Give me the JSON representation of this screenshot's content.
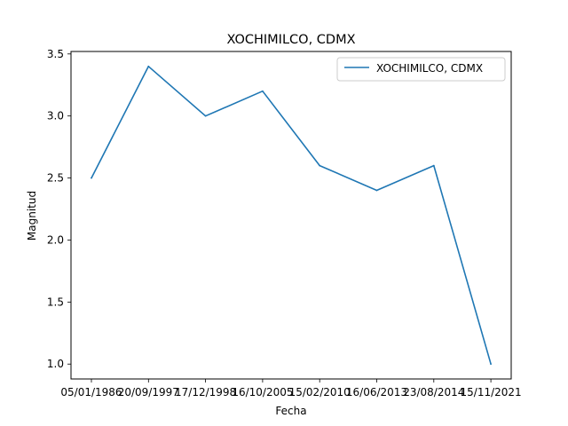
{
  "chart_data": {
    "type": "line",
    "title": "XOCHIMILCO, CDMX",
    "xlabel": "Fecha",
    "ylabel": "Magnitud",
    "categories": [
      "05/01/1986",
      "20/09/1997",
      "17/12/1998",
      "16/10/2005",
      "15/02/2010",
      "16/06/2013",
      "23/08/2014",
      "15/11/2021"
    ],
    "series": [
      {
        "name": "XOCHIMILCO, CDMX",
        "values": [
          2.5,
          3.4,
          3.0,
          3.2,
          2.6,
          2.4,
          2.6,
          1.0
        ],
        "color": "#1f77b4"
      }
    ],
    "yticks": [
      "1.0",
      "1.5",
      "2.0",
      "2.5",
      "3.0",
      "3.5"
    ],
    "ylim": [
      0.88,
      3.52
    ],
    "legend": "top-right",
    "grid": false
  }
}
